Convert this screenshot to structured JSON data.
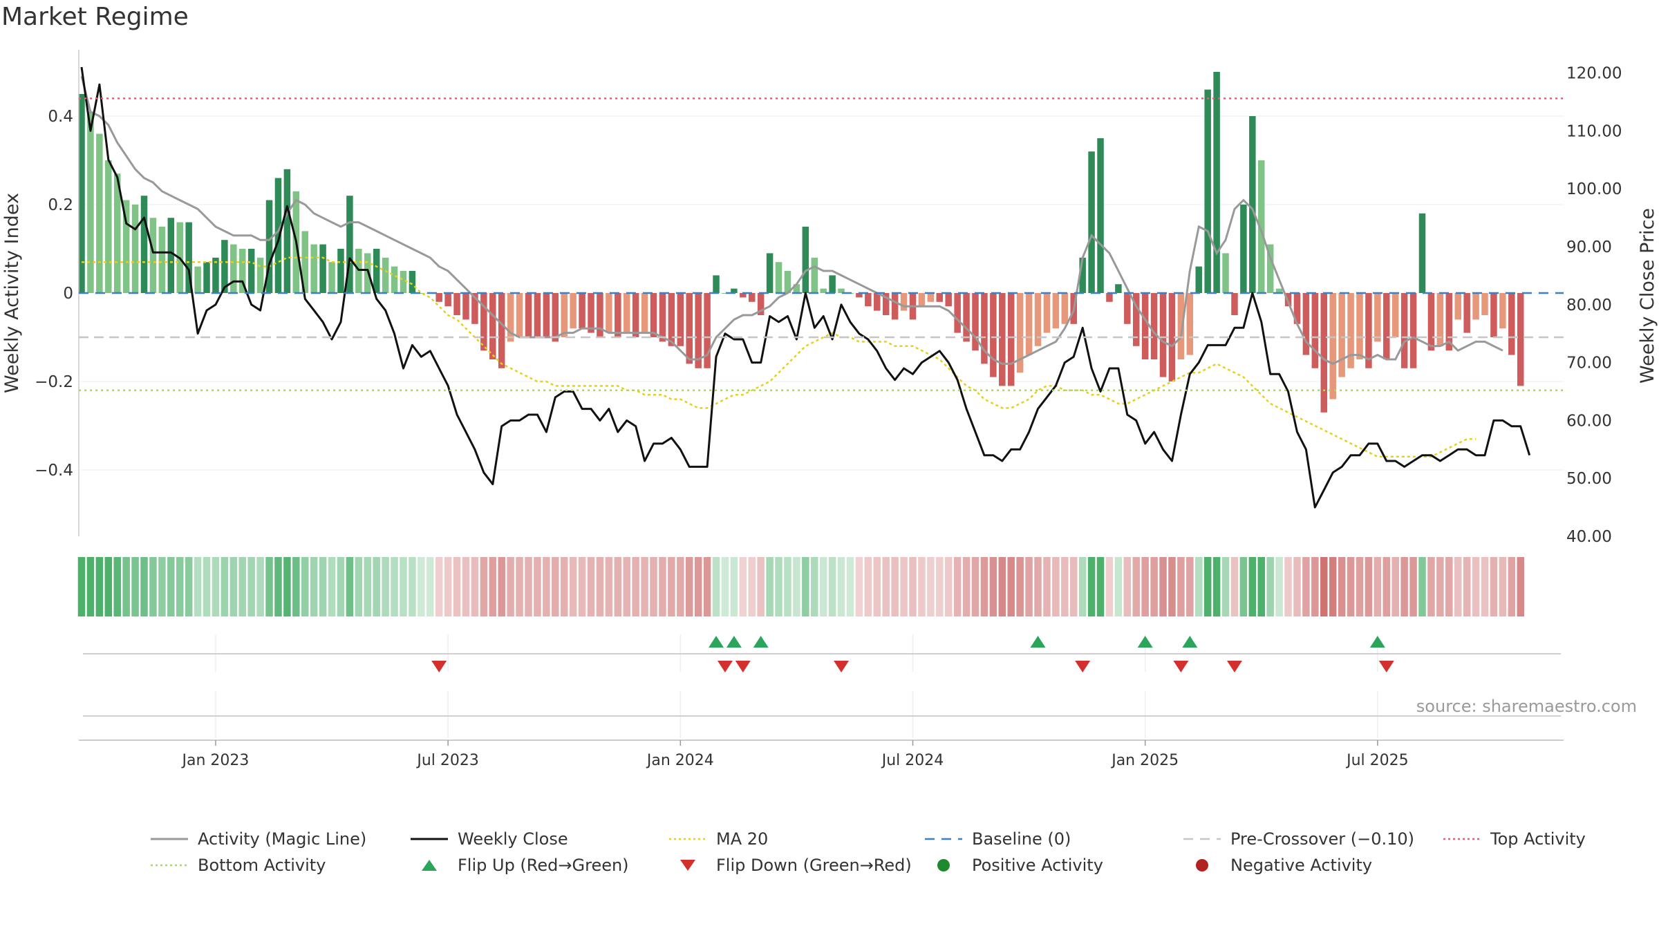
{
  "title": "Market Regime",
  "source": "source: sharemaestro.com",
  "colors": {
    "up_dark": "#2e8b57",
    "up_light": "#7fc386",
    "down_dark": "#cf5c5c",
    "down_light": "#e8987a",
    "close": "#111111",
    "magic": "#999999",
    "ma20": "#e6d01c",
    "baseline": "#3b7fc4",
    "precross": "#c6c6c6",
    "top": "#e0607a",
    "bottom": "#a8d86a",
    "flip_up": "#2aa55a",
    "flip_down": "#d32f2f",
    "pos": "#1e8a2e",
    "neg": "#b22222"
  },
  "chart_data": {
    "type": "bar+line",
    "title": "Market Regime",
    "ylabel_left": "Weekly Activity Index",
    "ylabel_right": "Weekly Close Price",
    "left_ticks": [
      "0.4",
      "0.2",
      "0",
      "−0.2",
      "−0.4"
    ],
    "left_tick_values": [
      0.4,
      0.2,
      0,
      -0.2,
      -0.4
    ],
    "right_ticks": [
      "120.00",
      "110.00",
      "100.00",
      "90.00",
      "80.00",
      "70.00",
      "60.00",
      "50.00",
      "40.00"
    ],
    "right_tick_values": [
      120,
      110,
      100,
      90,
      80,
      70,
      60,
      50,
      40
    ],
    "x_ticks": [
      "Jan 2023",
      "Jul 2023",
      "Jan 2024",
      "Jul 2024",
      "Jan 2025",
      "Jul 2025"
    ],
    "x_tick_weeks": [
      15,
      41,
      67,
      93,
      119,
      145
    ],
    "ylim_left": [
      -0.55,
      0.55
    ],
    "ylim_right": [
      40,
      124
    ],
    "reference_lines": {
      "baseline": 0,
      "pre_crossover": -0.1,
      "top_activity": 0.44,
      "bottom_activity": -0.22
    },
    "activity": [
      0.45,
      0.41,
      0.36,
      0.3,
      0.27,
      0.21,
      0.2,
      0.22,
      0.17,
      0.15,
      0.17,
      0.16,
      0.16,
      0.06,
      0.07,
      0.08,
      0.12,
      0.11,
      0.1,
      0.1,
      0.08,
      0.21,
      0.26,
      0.28,
      0.23,
      0.14,
      0.11,
      0.11,
      0.07,
      0.1,
      0.22,
      0.1,
      0.09,
      0.1,
      0.08,
      0.06,
      0.05,
      0.05,
      0.0,
      0.0,
      -0.02,
      -0.03,
      -0.05,
      -0.06,
      -0.07,
      -0.13,
      -0.15,
      -0.17,
      -0.11,
      -0.1,
      -0.1,
      -0.1,
      -0.1,
      -0.11,
      -0.1,
      -0.08,
      -0.08,
      -0.09,
      -0.1,
      -0.09,
      -0.1,
      -0.09,
      -0.1,
      -0.09,
      -0.1,
      -0.11,
      -0.12,
      -0.12,
      -0.16,
      -0.17,
      -0.17,
      0.04,
      0.0,
      0.01,
      -0.01,
      -0.02,
      -0.05,
      0.09,
      0.07,
      0.05,
      0.02,
      0.15,
      0.08,
      0.01,
      0.04,
      0.01,
      0.0,
      -0.01,
      -0.03,
      -0.04,
      -0.05,
      -0.06,
      -0.04,
      -0.06,
      -0.03,
      -0.02,
      -0.02,
      -0.03,
      -0.09,
      -0.11,
      -0.13,
      -0.16,
      -0.19,
      -0.21,
      -0.21,
      -0.18,
      -0.14,
      -0.12,
      -0.09,
      -0.08,
      -0.07,
      -0.07,
      0.08,
      0.32,
      0.35,
      -0.02,
      0.02,
      -0.07,
      -0.12,
      -0.15,
      -0.15,
      -0.19,
      -0.2,
      -0.15,
      -0.14,
      0.06,
      0.46,
      0.5,
      0.09,
      -0.05,
      0.2,
      0.4,
      0.3,
      0.11,
      0.01,
      -0.03,
      -0.07,
      -0.14,
      -0.17,
      -0.27,
      -0.24,
      -0.19,
      -0.17,
      -0.15,
      -0.17,
      -0.11,
      -0.15,
      -0.1,
      -0.17,
      -0.17,
      0.18,
      -0.13,
      -0.12,
      -0.13,
      -0.06,
      -0.09,
      -0.06,
      -0.05,
      -0.1,
      -0.08,
      -0.14,
      -0.21
    ],
    "weekly_close": [
      121,
      110,
      118,
      105,
      102,
      94,
      93,
      95,
      89,
      89,
      89,
      88,
      86,
      75,
      79,
      80,
      83,
      84,
      84,
      80,
      79,
      87,
      91,
      97,
      91,
      81,
      79,
      77,
      74,
      77,
      88,
      86,
      86,
      81,
      79,
      75,
      69,
      73,
      71,
      72,
      69,
      66,
      61,
      58,
      55,
      51,
      49,
      59,
      60,
      60,
      61,
      61,
      58,
      64,
      65,
      65,
      62,
      62,
      60,
      62,
      58,
      60,
      59,
      53,
      56,
      56,
      57,
      55,
      52,
      52,
      52,
      71,
      75,
      74,
      74,
      70,
      70,
      78,
      77,
      78,
      74,
      82,
      76,
      78,
      74,
      80,
      77,
      75,
      74,
      72,
      69,
      67,
      69,
      68,
      70,
      71,
      72,
      70,
      67,
      62,
      58,
      54,
      54,
      53,
      55,
      55,
      58,
      62,
      64,
      66,
      70,
      71,
      76,
      69,
      65,
      69,
      69,
      61,
      60,
      56,
      58,
      55,
      53,
      61,
      68,
      70,
      73,
      73,
      73,
      76,
      76,
      82,
      77,
      68,
      68,
      65,
      58,
      55,
      45,
      48,
      51,
      52,
      54,
      54,
      56,
      56,
      53,
      53,
      52,
      53,
      54,
      54,
      53,
      54,
      55,
      55,
      54,
      54,
      60,
      60,
      59,
      59,
      54
    ],
    "magic_line": [
      0.49,
      0.41,
      0.4,
      0.38,
      0.34,
      0.31,
      0.28,
      0.26,
      0.25,
      0.23,
      0.22,
      0.21,
      0.2,
      0.19,
      0.17,
      0.15,
      0.14,
      0.13,
      0.13,
      0.13,
      0.12,
      0.12,
      0.14,
      0.18,
      0.21,
      0.2,
      0.18,
      0.17,
      0.16,
      0.15,
      0.16,
      0.16,
      0.15,
      0.14,
      0.13,
      0.12,
      0.11,
      0.1,
      0.09,
      0.08,
      0.06,
      0.05,
      0.03,
      0.01,
      -0.01,
      -0.03,
      -0.05,
      -0.07,
      -0.09,
      -0.1,
      -0.1,
      -0.1,
      -0.1,
      -0.1,
      -0.09,
      -0.09,
      -0.08,
      -0.08,
      -0.08,
      -0.09,
      -0.09,
      -0.09,
      -0.09,
      -0.09,
      -0.09,
      -0.1,
      -0.11,
      -0.13,
      -0.15,
      -0.15,
      -0.14,
      -0.1,
      -0.08,
      -0.06,
      -0.05,
      -0.05,
      -0.04,
      -0.03,
      -0.01,
      0.0,
      0.02,
      0.05,
      0.06,
      0.05,
      0.05,
      0.04,
      0.03,
      0.02,
      0.01,
      0.0,
      -0.01,
      -0.02,
      -0.03,
      -0.03,
      -0.03,
      -0.03,
      -0.03,
      -0.04,
      -0.06,
      -0.08,
      -0.1,
      -0.13,
      -0.15,
      -0.16,
      -0.16,
      -0.15,
      -0.14,
      -0.13,
      -0.12,
      -0.11,
      -0.08,
      -0.04,
      0.08,
      0.13,
      0.11,
      0.09,
      0.05,
      0.01,
      -0.03,
      -0.06,
      -0.09,
      -0.11,
      -0.12,
      -0.1,
      0.05,
      0.15,
      0.14,
      0.09,
      0.12,
      0.19,
      0.21,
      0.19,
      0.14,
      0.08,
      0.03,
      -0.02,
      -0.07,
      -0.11,
      -0.13,
      -0.15,
      -0.16,
      -0.15,
      -0.14,
      -0.14,
      -0.15,
      -0.14,
      -0.15,
      -0.15,
      -0.11,
      -0.1,
      -0.11,
      -0.12,
      -0.12,
      -0.11,
      -0.13,
      -0.12,
      -0.11,
      -0.11,
      -0.12,
      -0.13
    ],
    "ma20": [
      0.07,
      0.07,
      0.07,
      0.07,
      0.07,
      0.07,
      0.07,
      0.07,
      0.07,
      0.07,
      0.07,
      0.07,
      0.07,
      0.07,
      0.07,
      0.07,
      0.07,
      0.07,
      0.07,
      0.07,
      0.06,
      0.06,
      0.07,
      0.08,
      0.08,
      0.08,
      0.08,
      0.08,
      0.07,
      0.07,
      0.07,
      0.07,
      0.07,
      0.06,
      0.05,
      0.04,
      0.03,
      0.02,
      0.0,
      -0.01,
      -0.03,
      -0.05,
      -0.06,
      -0.08,
      -0.1,
      -0.12,
      -0.14,
      -0.16,
      -0.17,
      -0.18,
      -0.19,
      -0.2,
      -0.2,
      -0.21,
      -0.21,
      -0.21,
      -0.21,
      -0.21,
      -0.21,
      -0.21,
      -0.21,
      -0.22,
      -0.22,
      -0.23,
      -0.23,
      -0.23,
      -0.24,
      -0.24,
      -0.25,
      -0.26,
      -0.26,
      -0.25,
      -0.24,
      -0.23,
      -0.23,
      -0.22,
      -0.21,
      -0.2,
      -0.18,
      -0.16,
      -0.14,
      -0.12,
      -0.11,
      -0.1,
      -0.09,
      -0.1,
      -0.1,
      -0.11,
      -0.11,
      -0.11,
      -0.11,
      -0.12,
      -0.12,
      -0.12,
      -0.13,
      -0.14,
      -0.15,
      -0.17,
      -0.19,
      -0.21,
      -0.22,
      -0.24,
      -0.25,
      -0.26,
      -0.26,
      -0.25,
      -0.24,
      -0.22,
      -0.21,
      -0.21,
      -0.22,
      -0.22,
      -0.22,
      -0.23,
      -0.23,
      -0.24,
      -0.25,
      -0.25,
      -0.24,
      -0.23,
      -0.22,
      -0.21,
      -0.2,
      -0.19,
      -0.18,
      -0.18,
      -0.17,
      -0.16,
      -0.17,
      -0.18,
      -0.19,
      -0.21,
      -0.23,
      -0.25,
      -0.26,
      -0.27,
      -0.28,
      -0.29,
      -0.3,
      -0.31,
      -0.32,
      -0.33,
      -0.34,
      -0.35,
      -0.36,
      -0.37,
      -0.37,
      -0.37,
      -0.37,
      -0.37,
      -0.37,
      -0.37,
      -0.36,
      -0.35,
      -0.34,
      -0.33,
      -0.33
    ],
    "regime_strip_values": [
      0.45,
      0.41,
      0.36,
      0.3,
      0.27,
      0.21,
      0.2,
      0.22,
      0.17,
      0.15,
      0.17,
      0.16,
      0.16,
      0.06,
      0.07,
      0.08,
      0.12,
      0.11,
      0.1,
      0.1,
      0.08,
      0.21,
      0.26,
      0.28,
      0.23,
      0.14,
      0.11,
      0.11,
      0.07,
      0.1,
      0.22,
      0.1,
      0.09,
      0.1,
      0.08,
      0.06,
      0.05,
      0.05,
      0.0,
      0.0,
      -0.02,
      -0.03,
      -0.05,
      -0.06,
      -0.07,
      -0.13,
      -0.15,
      -0.17,
      -0.11,
      -0.1,
      -0.1,
      -0.1,
      -0.1,
      -0.11,
      -0.1,
      -0.08,
      -0.08,
      -0.09,
      -0.1,
      -0.09,
      -0.1,
      -0.09,
      -0.1,
      -0.09,
      -0.1,
      -0.11,
      -0.12,
      -0.12,
      -0.16,
      -0.17,
      -0.17,
      0.04,
      0.0,
      0.01,
      -0.01,
      -0.02,
      -0.05,
      0.09,
      0.07,
      0.05,
      0.02,
      0.15,
      0.08,
      0.01,
      0.04,
      0.01,
      0.0,
      -0.01,
      -0.03,
      -0.04,
      -0.05,
      -0.06,
      -0.04,
      -0.06,
      -0.03,
      -0.02,
      -0.02,
      -0.03,
      -0.09,
      -0.11,
      -0.13,
      -0.16,
      -0.19,
      -0.21,
      -0.21,
      -0.18,
      -0.14,
      -0.12,
      -0.09,
      -0.08,
      -0.07,
      -0.07,
      0.08,
      0.32,
      0.35,
      -0.02,
      0.02,
      -0.07,
      -0.12,
      -0.15,
      -0.15,
      -0.19,
      -0.2,
      -0.15,
      -0.14,
      0.06,
      0.46,
      0.5,
      0.09,
      -0.05,
      0.2,
      0.4,
      0.3,
      0.11,
      0.01,
      -0.03,
      -0.07,
      -0.14,
      -0.17,
      -0.27,
      -0.24,
      -0.19,
      -0.17,
      -0.15,
      -0.17,
      -0.11,
      -0.15,
      -0.1,
      -0.17,
      -0.17,
      0.18,
      -0.13,
      -0.12,
      -0.13,
      -0.06,
      -0.09,
      -0.06,
      -0.05,
      -0.1,
      -0.08,
      -0.14,
      -0.21
    ],
    "flip_up_weeks": [
      71,
      73,
      76,
      107,
      119,
      124,
      145
    ],
    "flip_down_weeks": [
      40,
      72,
      74,
      85,
      112,
      123,
      129,
      146
    ],
    "legend": [
      {
        "key": "magic",
        "label": "Activity (Magic Line)",
        "marker": "line"
      },
      {
        "key": "close",
        "label": "Weekly Close",
        "marker": "line"
      },
      {
        "key": "ma20",
        "label": "MA 20",
        "marker": "dotted"
      },
      {
        "key": "baseline",
        "label": "Baseline (0)",
        "marker": "dashed"
      },
      {
        "key": "precross",
        "label": "Pre-Crossover (−0.10)",
        "marker": "dashed"
      },
      {
        "key": "top",
        "label": "Top Activity",
        "marker": "dotted"
      },
      {
        "key": "bottom",
        "label": "Bottom Activity",
        "marker": "dotted"
      },
      {
        "key": "flip_up",
        "label": "Flip Up (Red→Green)",
        "marker": "triangle-up"
      },
      {
        "key": "flip_down",
        "label": "Flip Down (Green→Red)",
        "marker": "triangle-down"
      },
      {
        "key": "pos",
        "label": "Positive Activity",
        "marker": "circle"
      },
      {
        "key": "neg",
        "label": "Negative Activity",
        "marker": "circle"
      }
    ]
  }
}
